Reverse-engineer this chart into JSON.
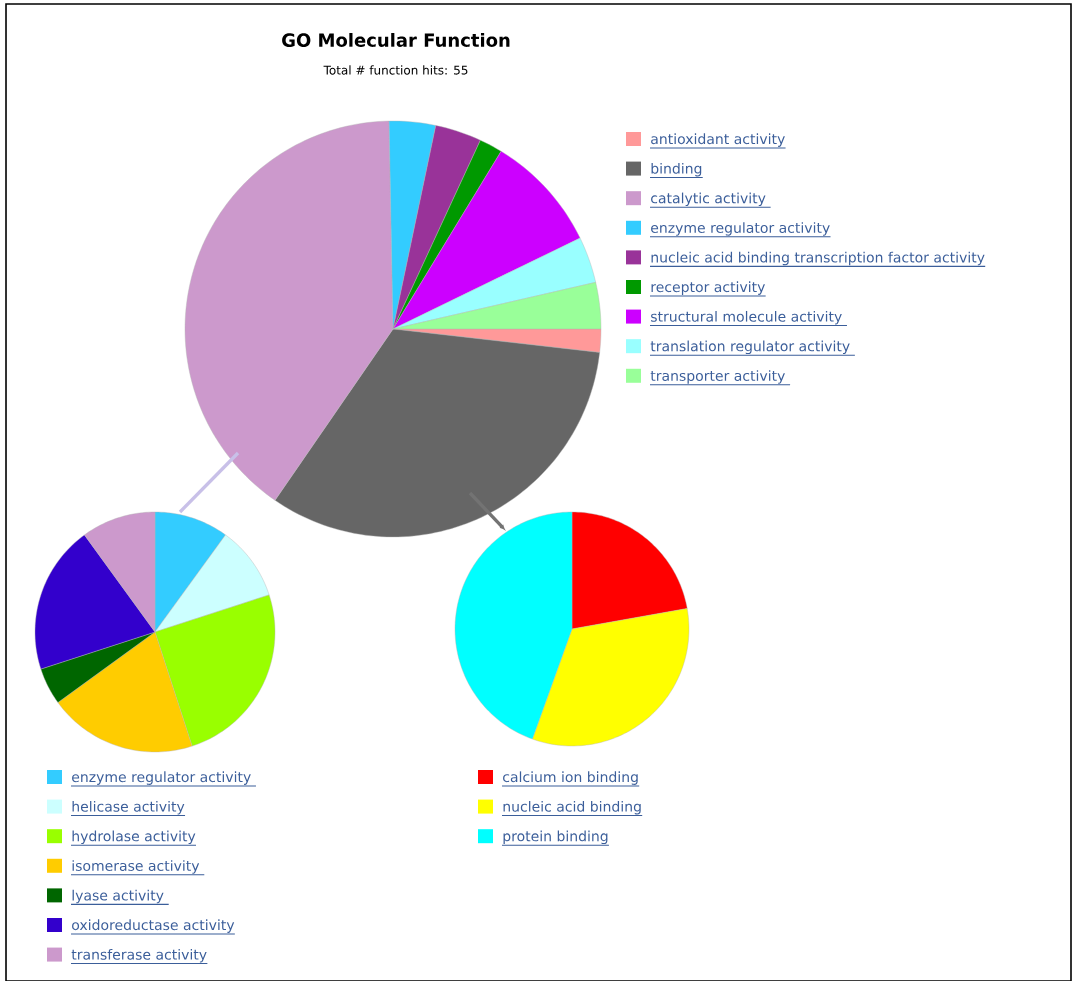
{
  "chart_data": [
    {
      "type": "pie",
      "title": "GO Molecular Function",
      "subtitle": "Total # function hits: 55",
      "legend": "right",
      "categories": [
        "antioxidant activity",
        "binding",
        "catalytic activity ",
        "enzyme regulator activity",
        "nucleic acid binding transcription factor activity",
        "receptor activity",
        "structural molecule activity ",
        "translation regulator activity ",
        "transporter activity "
      ],
      "values": [
        1.8,
        32.8,
        40.1,
        3.6,
        3.6,
        1.8,
        9.1,
        3.6,
        3.6
      ],
      "colors": [
        "#ff9999",
        "#666666",
        "#cc99cc",
        "#33ccff",
        "#993399",
        "#009900",
        "#cc00ff",
        "#99ffff",
        "#99ff99"
      ]
    },
    {
      "type": "pie",
      "legend": "bottom",
      "categories": [
        "enzyme regulator activity ",
        "helicase activity",
        "hydrolase activity",
        "isomerase activity ",
        "lyase activity ",
        "oxidoreductase activity",
        "transferase activity"
      ],
      "values": [
        10,
        10,
        25,
        20,
        5,
        20,
        10
      ],
      "colors": [
        "#33ccff",
        "#ccffff",
        "#99ff00",
        "#ffcc00",
        "#006600",
        "#3300cc",
        "#cc99cc"
      ]
    },
    {
      "type": "pie",
      "legend": "bottom",
      "categories": [
        "calcium ion binding",
        "nucleic acid binding",
        "protein binding"
      ],
      "values": [
        22.2,
        33.3,
        44.5
      ],
      "colors": [
        "#ff0000",
        "#ffff00",
        "#00ffff"
      ]
    }
  ]
}
